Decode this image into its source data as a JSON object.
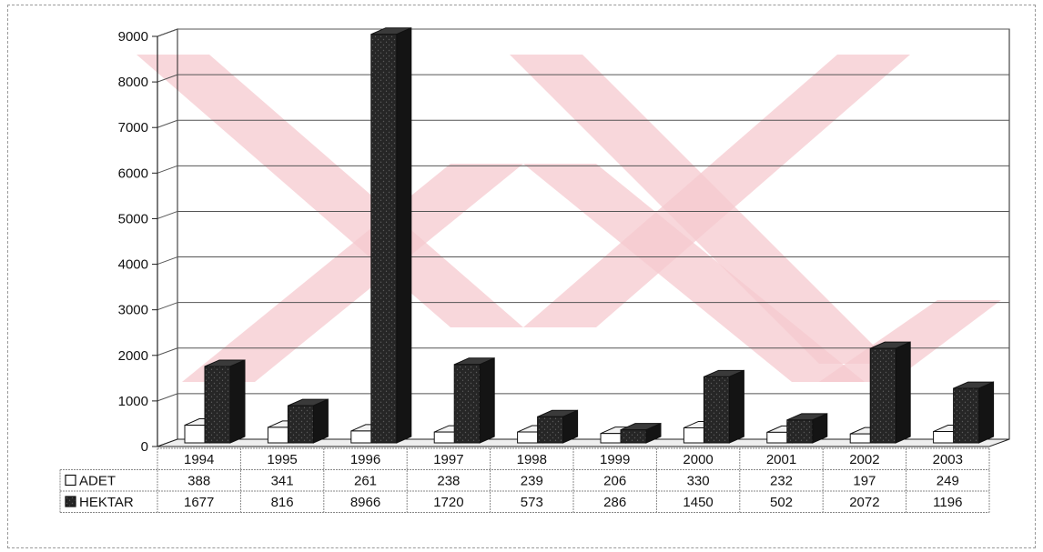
{
  "chart_data": {
    "type": "bar",
    "title": "",
    "xlabel": "",
    "ylabel": "",
    "ylim": [
      0,
      9000
    ],
    "yticks": [
      0,
      1000,
      2000,
      3000,
      4000,
      5000,
      6000,
      7000,
      8000,
      9000
    ],
    "grid": true,
    "legend": "data-table-left",
    "categories": [
      "1994",
      "1995",
      "1996",
      "1997",
      "1998",
      "1999",
      "2000",
      "2001",
      "2002",
      "2003"
    ],
    "series": [
      {
        "name": "ADET",
        "values": [
          388,
          341,
          261,
          238,
          239,
          206,
          330,
          232,
          197,
          249
        ],
        "color": "#ffffff"
      },
      {
        "name": "HEKTAR",
        "values": [
          1677,
          816,
          8966,
          1720,
          573,
          286,
          1450,
          502,
          2072,
          1196
        ],
        "color": "#1e1e1e"
      }
    ],
    "watermark_color": "#f6c9cf"
  }
}
